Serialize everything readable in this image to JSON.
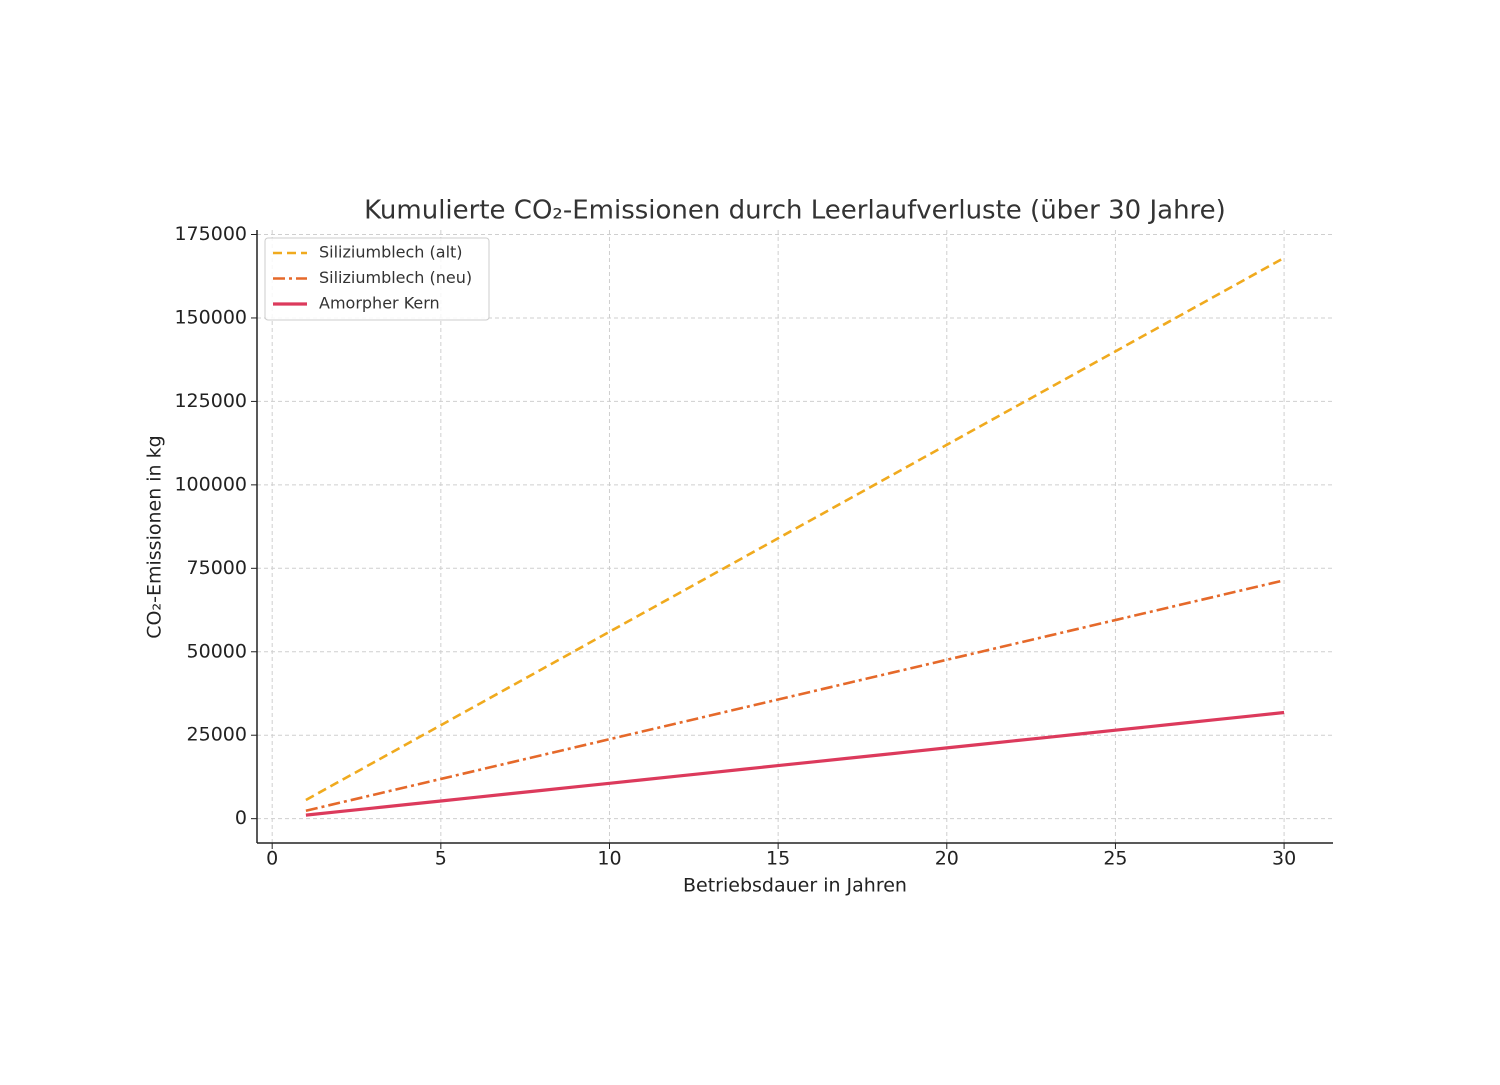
{
  "chart_data": {
    "type": "line",
    "title": "Kumulierte CO₂-Emissionen durch Leerlaufverluste (über 30 Jahre)",
    "x_label": "Betriebsdauer in Jahren",
    "y_label": "CO₂-Emissionen in kg",
    "x": [
      1,
      2,
      3,
      4,
      5,
      6,
      7,
      8,
      9,
      10,
      11,
      12,
      13,
      14,
      15,
      16,
      17,
      18,
      19,
      20,
      21,
      22,
      23,
      24,
      25,
      26,
      27,
      28,
      29,
      30
    ],
    "series": [
      {
        "name": "Siliziumblech (alt)",
        "color": "#f0aa1e",
        "style": "dashed",
        "values": [
          5600,
          11200,
          16800,
          22400,
          28000,
          33600,
          39200,
          44800,
          50400,
          56000,
          61600,
          67200,
          72800,
          78400,
          84000,
          89600,
          95200,
          100800,
          106400,
          112000,
          117600,
          123200,
          128800,
          134400,
          140000,
          145600,
          151200,
          156800,
          162400,
          168000
        ]
      },
      {
        "name": "Siliziumblech (neu)",
        "color": "#e5692a",
        "style": "dashdot",
        "values": [
          2380,
          4760,
          7140,
          9520,
          11900,
          14280,
          16660,
          19040,
          21420,
          23800,
          26180,
          28560,
          30940,
          33320,
          35700,
          38080,
          40460,
          42840,
          45220,
          47600,
          49980,
          52360,
          54740,
          57120,
          59500,
          61880,
          64260,
          66640,
          69020,
          71400
        ]
      },
      {
        "name": "Amorpher Kern",
        "color": "#dc3a5c",
        "style": "solid",
        "values": [
          1060,
          2120,
          3180,
          4240,
          5300,
          6360,
          7420,
          8480,
          9540,
          10600,
          11660,
          12720,
          13780,
          14840,
          15900,
          16960,
          18020,
          19080,
          20140,
          21200,
          22260,
          23320,
          24380,
          25440,
          26500,
          27560,
          28620,
          29680,
          30740,
          31800
        ]
      }
    ],
    "xlim": [
      -0.45,
      31.45
    ],
    "ylim": [
      -7290,
      176350
    ],
    "xticks": [
      0,
      5,
      10,
      15,
      20,
      25,
      30
    ],
    "yticks": [
      0,
      25000,
      50000,
      75000,
      100000,
      125000,
      150000,
      175000
    ],
    "grid": true,
    "legend": "upper left"
  }
}
